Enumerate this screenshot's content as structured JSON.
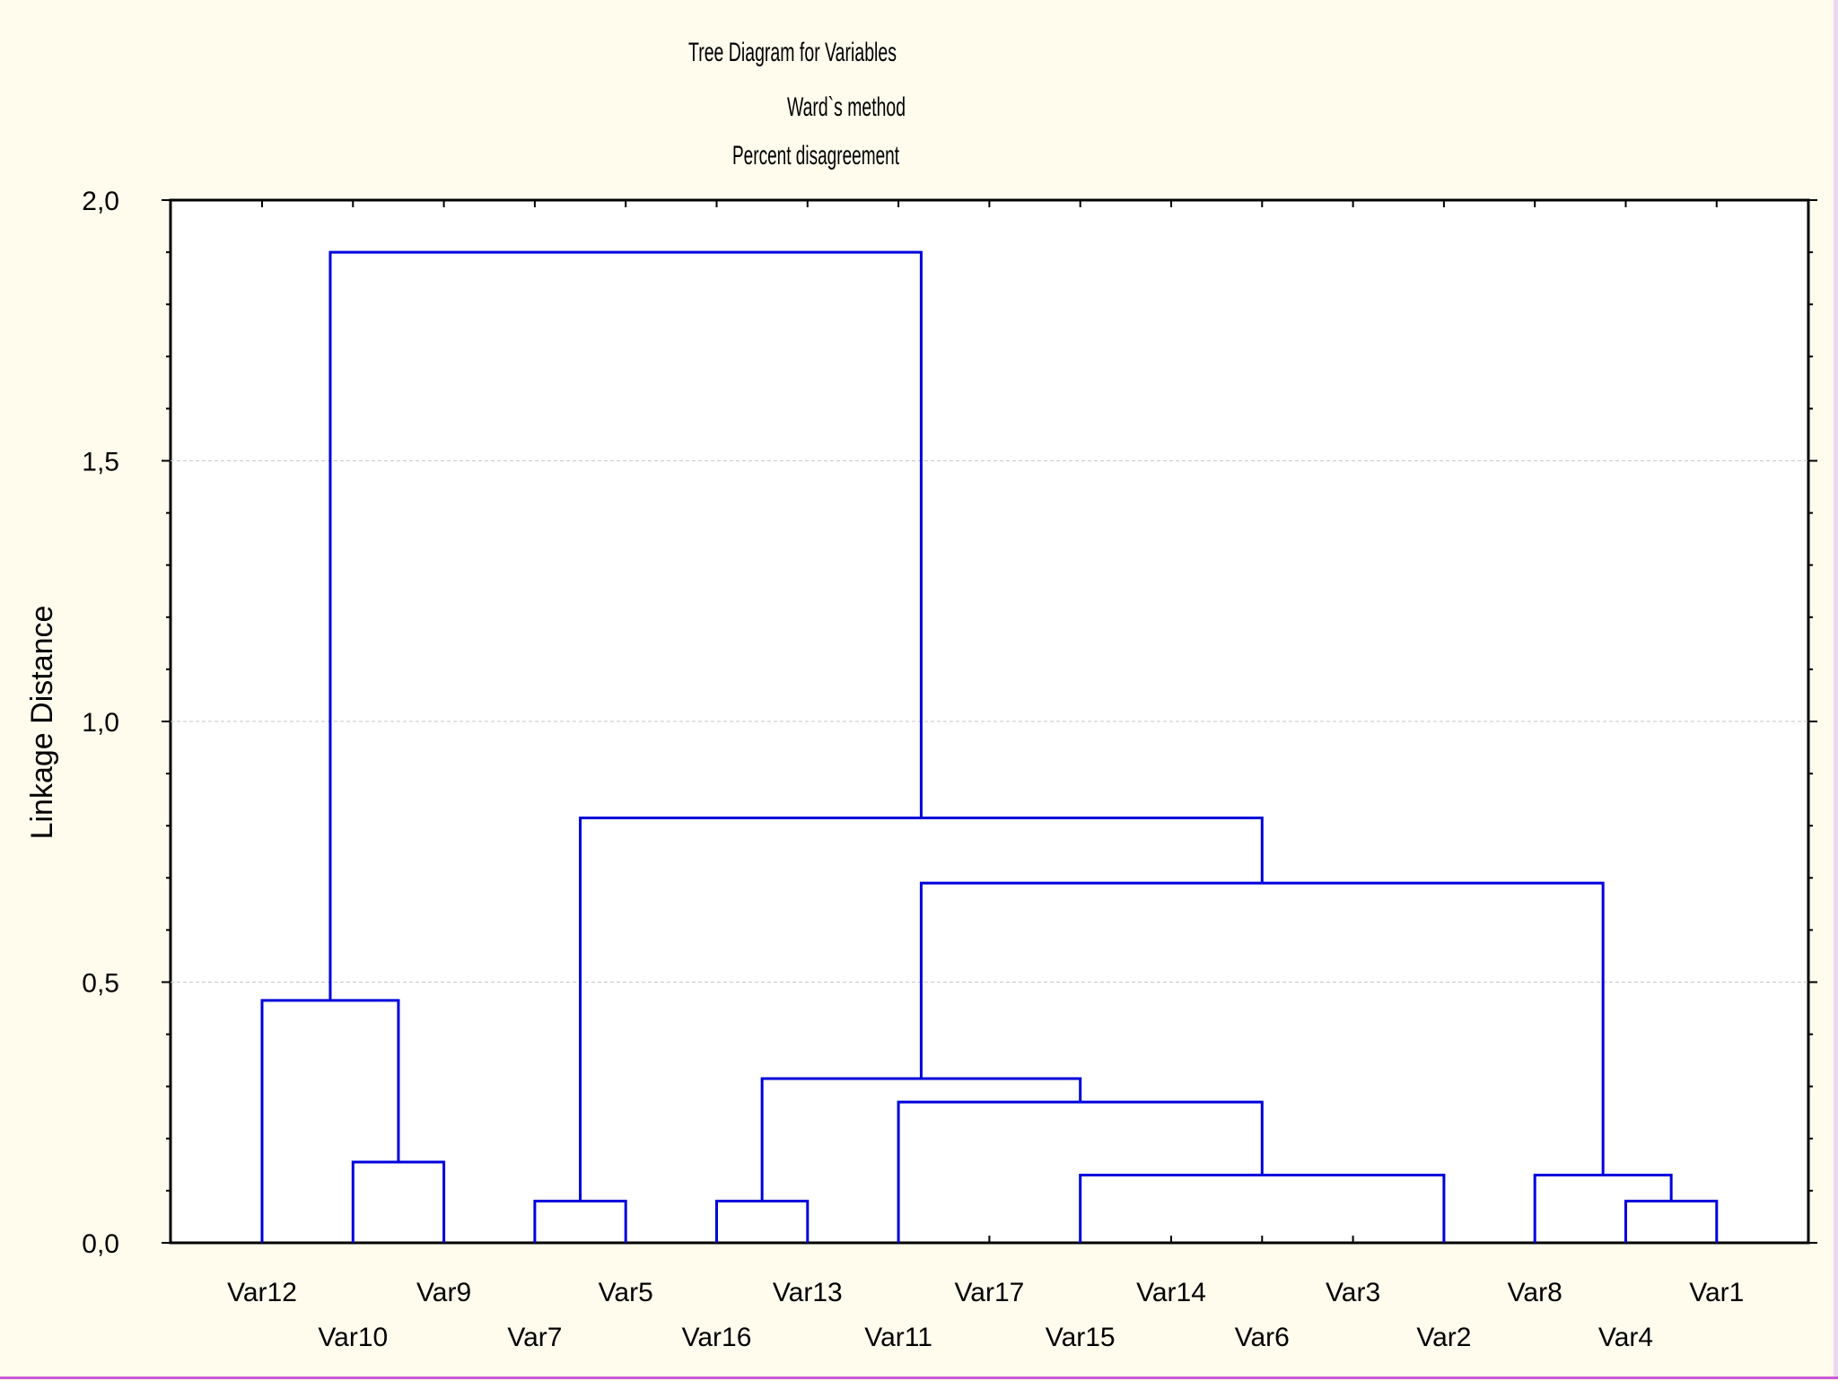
{
  "chart_data": {
    "type": "dendrogram",
    "title": [
      "Tree Diagram for  Variables",
      "Ward`s method",
      "Percent disagreement"
    ],
    "ylabel": "Linkage Distance",
    "xlabel": "",
    "ylim": [
      0,
      2.0
    ],
    "yticks": [
      0.0,
      0.5,
      1.0,
      1.5,
      2.0
    ],
    "ytick_labels": [
      "0,0",
      "0,5",
      "1,0",
      "1,5",
      "2,0"
    ],
    "grid": "horizontal-dashed",
    "line_color": "#0000dd",
    "leaves": [
      "Var12",
      "Var10",
      "Var9",
      "Var7",
      "Var5",
      "Var16",
      "Var13",
      "Var11",
      "Var17",
      "Var15",
      "Var14",
      "Var6",
      "Var3",
      "Var2",
      "Var8",
      "Var4",
      "Var1"
    ],
    "merges": [
      {
        "left": "Var7",
        "right": "Var5",
        "height": 0.08
      },
      {
        "left": "Var16",
        "right": "Var13",
        "height": 0.08
      },
      {
        "left": "Var4",
        "right": "Var1",
        "height": 0.08
      },
      {
        "left": "Var15",
        "right": "Var2",
        "height": 0.13
      },
      {
        "left": "Var8",
        "right": "C3",
        "height": 0.13
      },
      {
        "left": "Var10",
        "right": "Var9",
        "height": 0.155
      },
      {
        "left": "Var11",
        "right": "C4",
        "height": 0.27
      },
      {
        "left": "C2",
        "right": "C7",
        "height": 0.315
      },
      {
        "left": "Var12",
        "right": "C6",
        "height": 0.465
      },
      {
        "left": "C8",
        "right": "C5",
        "height": 0.69
      },
      {
        "left": "C1",
        "right": "C10",
        "height": 0.815
      },
      {
        "left": "C9",
        "right": "C11",
        "height": 1.9
      }
    ]
  }
}
